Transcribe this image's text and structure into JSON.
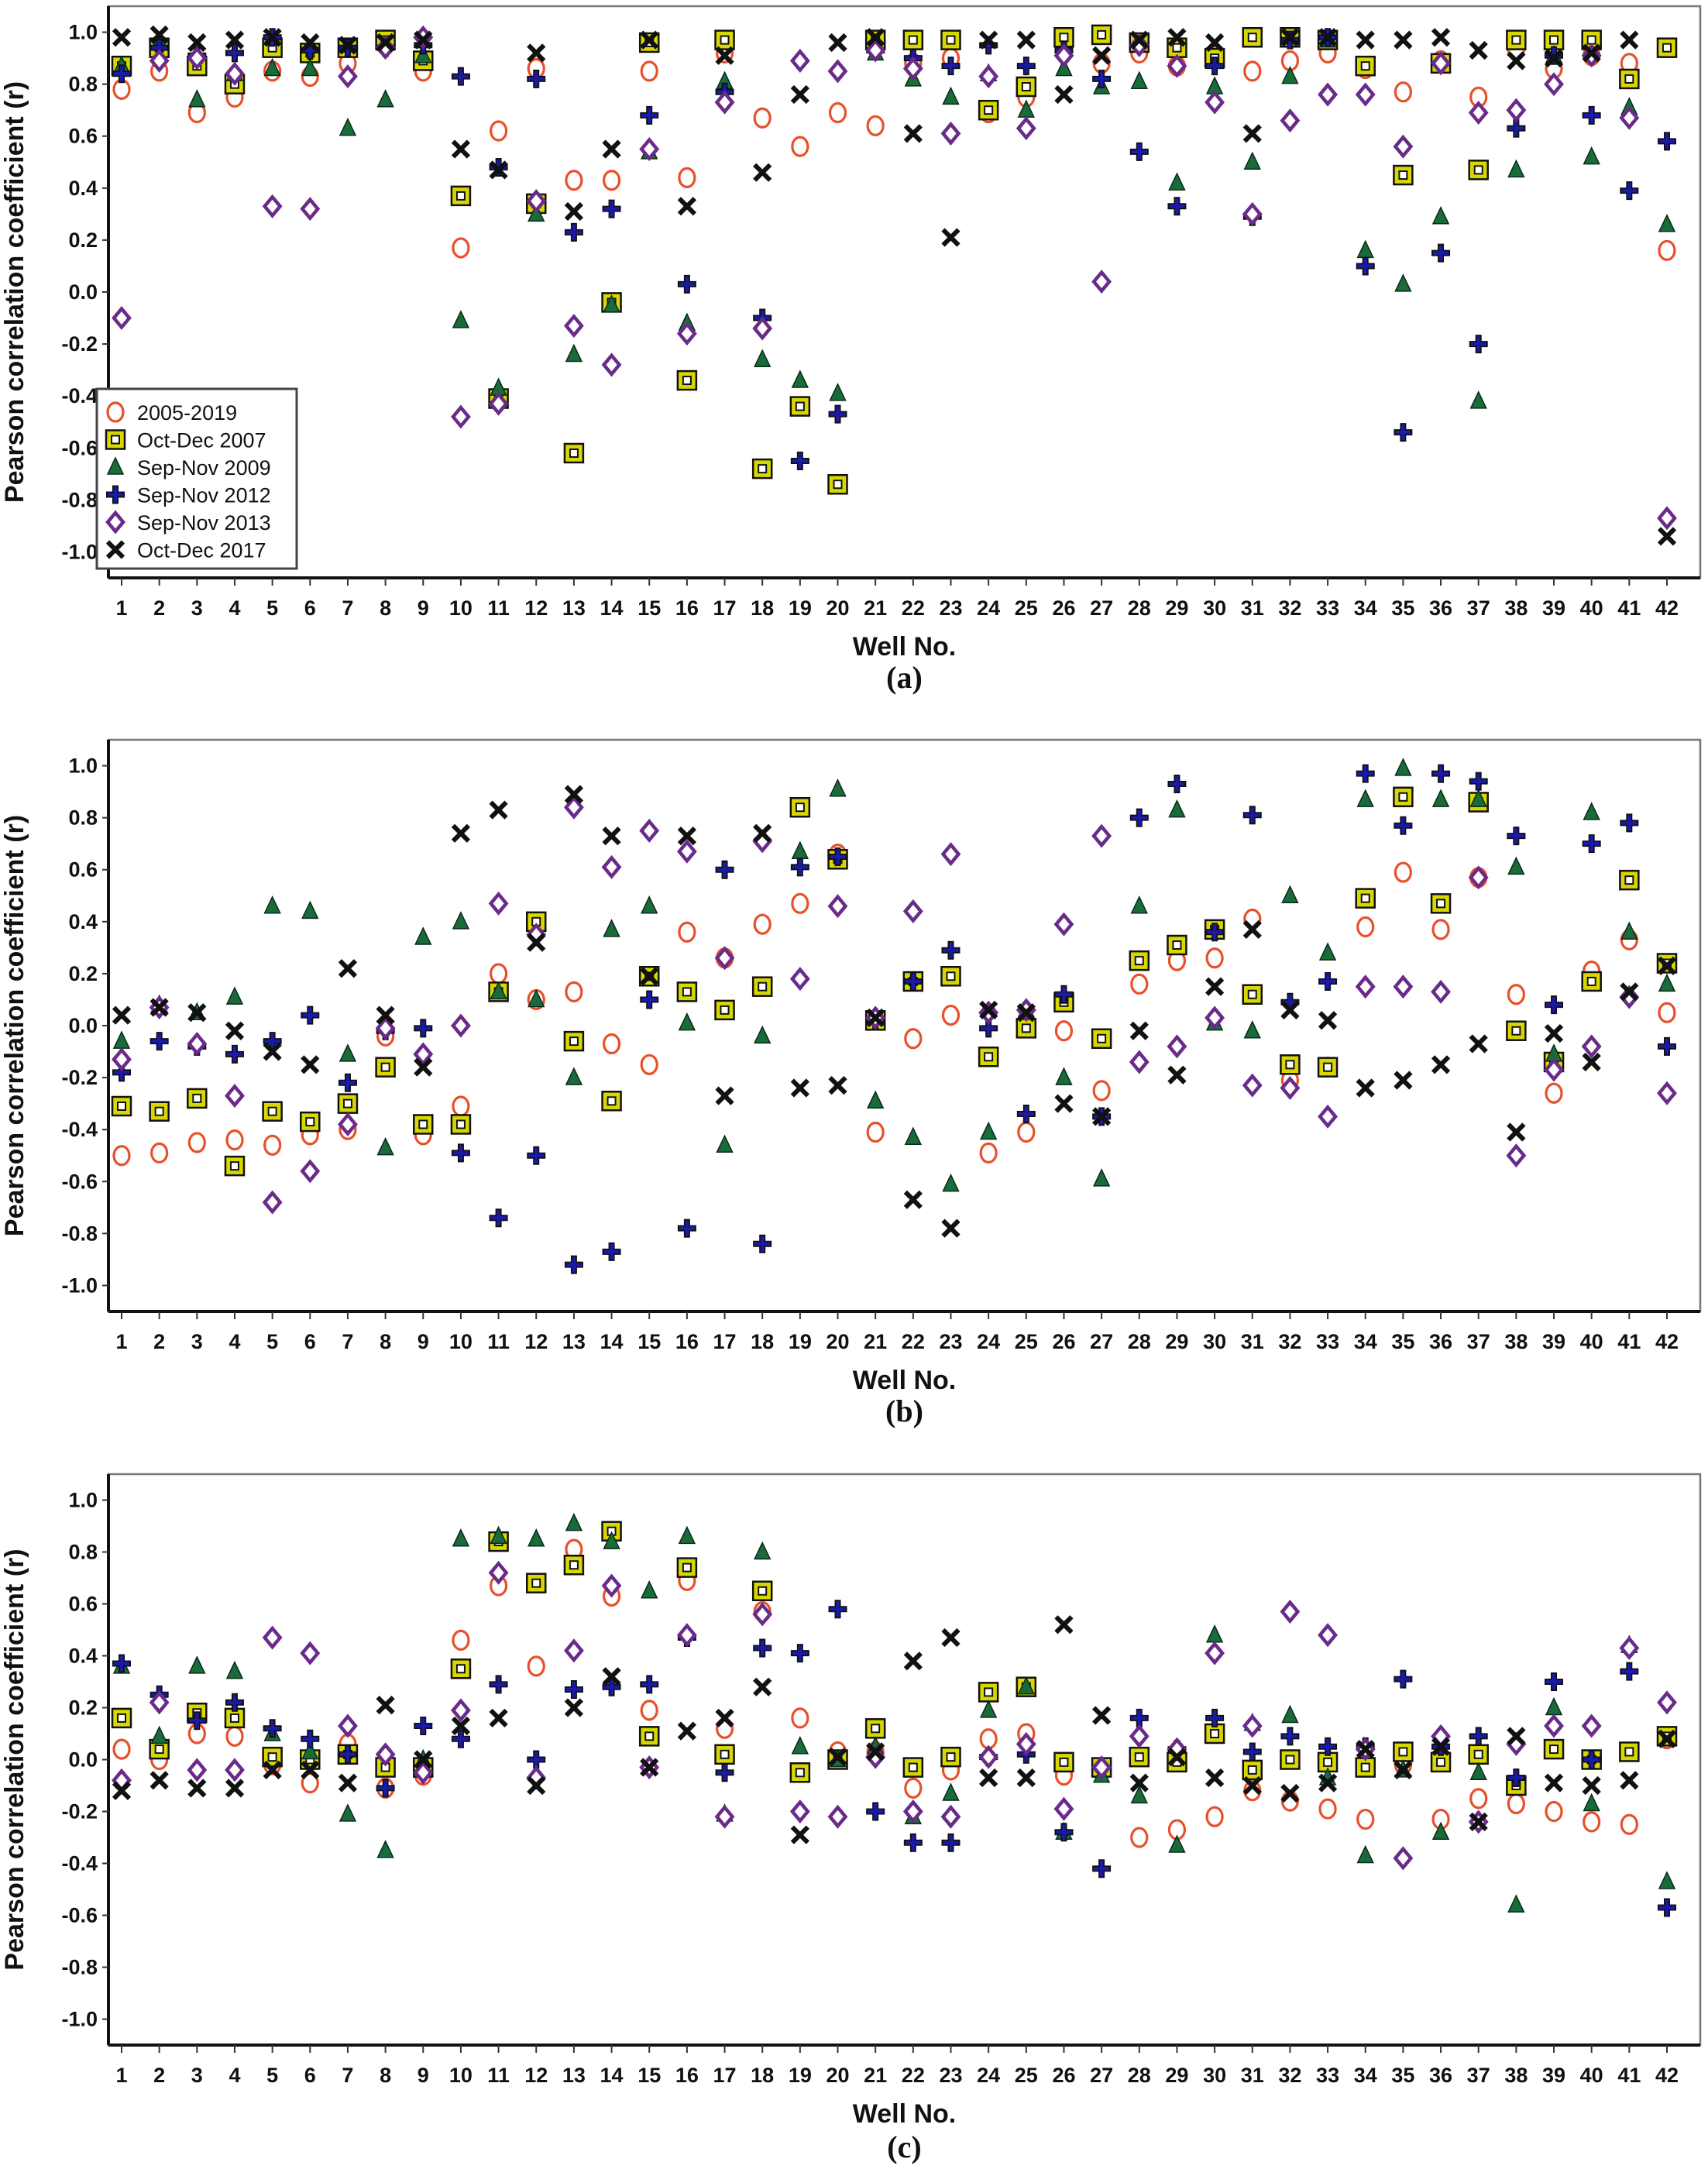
{
  "figure": {
    "xlabel": "Well No.",
    "ylabel": "Pearson correlation coefficient (r)"
  },
  "legend": [
    {
      "key": "s2005_2019",
      "label": "2005-2019",
      "marker": "circle",
      "color": "#e8502a"
    },
    {
      "key": "od2007",
      "label": "Oct-Dec 2007",
      "marker": "square",
      "color": "#d8d800"
    },
    {
      "key": "sn2009",
      "label": "Sep-Nov 2009",
      "marker": "triangle",
      "color": "#1a6b3a"
    },
    {
      "key": "sn2012",
      "label": "Sep-Nov 2012",
      "marker": "plus",
      "color": "#1a1aa8"
    },
    {
      "key": "sn2013",
      "label": "Sep-Nov 2013",
      "marker": "diamond",
      "color": "#6a2a8a"
    },
    {
      "key": "od2017",
      "label": "Oct-Dec 2017",
      "marker": "x",
      "color": "#111111"
    }
  ],
  "chart_data": [
    {
      "type": "scatter",
      "panel_label": "(a)",
      "xlabel": "Well No.",
      "ylabel": "Pearson correlation coefficient (r)",
      "ylim": [
        -1.1,
        1.1
      ],
      "yticks": [
        "1.0",
        "0.8",
        "0.6",
        "0.4",
        "0.2",
        "0.0",
        "-0.2",
        "-0.4",
        "-0.6",
        "-0.8",
        "-1.0"
      ],
      "x": [
        1,
        2,
        3,
        4,
        5,
        6,
        7,
        8,
        9,
        10,
        11,
        12,
        13,
        14,
        15,
        16,
        17,
        18,
        19,
        20,
        21,
        22,
        23,
        24,
        25,
        26,
        27,
        28,
        29,
        30,
        31,
        32,
        33,
        34,
        35,
        36,
        37,
        38,
        39,
        40,
        41,
        42
      ],
      "legend_position": "bottom-left",
      "grid": false,
      "series": [
        {
          "name": "2005-2019",
          "values": [
            0.78,
            0.85,
            0.69,
            0.75,
            0.85,
            0.83,
            0.88,
            0.95,
            0.85,
            0.17,
            0.62,
            0.86,
            0.43,
            0.43,
            0.85,
            0.44,
            0.92,
            0.67,
            0.56,
            0.69,
            0.64,
            0.88,
            0.9,
            0.69,
            0.75,
            0.96,
            0.88,
            0.92,
            0.87,
            0.91,
            0.85,
            0.89,
            0.92,
            0.86,
            0.77,
            0.89,
            0.75,
            0.93,
            0.86,
            0.91,
            0.88,
            0.16
          ]
        },
        {
          "name": "Oct-Dec 2007",
          "values": [
            0.87,
            0.94,
            0.87,
            0.8,
            0.94,
            0.92,
            0.94,
            0.97,
            0.89,
            0.37,
            -0.41,
            0.34,
            -0.62,
            -0.04,
            0.96,
            -0.34,
            0.97,
            -0.68,
            -0.44,
            -0.74,
            0.97,
            0.97,
            0.97,
            0.7,
            0.79,
            0.98,
            0.99,
            0.96,
            0.94,
            0.9,
            0.98,
            0.98,
            0.97,
            0.87,
            0.45,
            0.88,
            0.47,
            0.97,
            0.97,
            0.97,
            0.82,
            0.94
          ]
        },
        {
          "name": "Sep-Nov 2009",
          "values": [
            0.87,
            0.96,
            0.74,
            0.84,
            0.86,
            0.86,
            0.63,
            0.74,
            0.91,
            -0.11,
            -0.37,
            0.3,
            -0.24,
            -0.05,
            0.54,
            -0.12,
            0.81,
            -0.26,
            -0.34,
            -0.39,
            0.92,
            0.82,
            0.75,
            0.84,
            0.7,
            0.86,
            0.79,
            0.81,
            0.42,
            0.79,
            0.5,
            0.83,
            0.97,
            0.16,
            0.03,
            0.29,
            -0.42,
            0.47,
            0.91,
            0.52,
            0.71,
            0.26
          ]
        },
        {
          "name": "Sep-Nov 2012",
          "values": [
            0.84,
            0.94,
            0.91,
            0.92,
            0.98,
            0.93,
            0.94,
            0.94,
            0.95,
            0.83,
            0.48,
            0.82,
            0.23,
            0.32,
            0.68,
            0.03,
            0.77,
            -0.1,
            -0.65,
            -0.47,
            0.93,
            0.9,
            0.87,
            0.95,
            0.87,
            0.93,
            0.82,
            0.54,
            0.33,
            0.87,
            0.29,
            0.97,
            0.98,
            0.1,
            -0.54,
            0.15,
            -0.2,
            0.63,
            0.91,
            0.68,
            0.39,
            0.58
          ]
        },
        {
          "name": "Sep-Nov 2013",
          "values": [
            -0.1,
            0.89,
            0.9,
            0.84,
            0.33,
            0.32,
            0.83,
            0.94,
            0.98,
            -0.48,
            -0.43,
            0.35,
            -0.13,
            -0.28,
            0.55,
            -0.16,
            0.73,
            -0.14,
            0.89,
            0.85,
            0.93,
            0.86,
            0.61,
            0.83,
            0.63,
            0.91,
            0.04,
            0.95,
            0.87,
            0.73,
            0.3,
            0.66,
            0.76,
            0.76,
            0.56,
            0.88,
            0.69,
            0.7,
            0.8,
            0.91,
            0.67,
            -0.87
          ]
        },
        {
          "name": "Oct-Dec 2017",
          "values": [
            0.98,
            0.99,
            0.96,
            0.97,
            0.98,
            0.96,
            0.95,
            0.96,
            0.97,
            0.55,
            0.47,
            0.92,
            0.31,
            0.55,
            0.97,
            0.33,
            0.91,
            0.46,
            0.76,
            0.96,
            0.98,
            0.61,
            0.21,
            0.97,
            0.97,
            0.76,
            0.91,
            0.97,
            0.98,
            0.96,
            0.61,
            0.98,
            0.98,
            0.97,
            0.97,
            0.98,
            0.93,
            0.89,
            0.9,
            0.92,
            0.97,
            -0.94
          ]
        }
      ]
    },
    {
      "type": "scatter",
      "panel_label": "(b)",
      "xlabel": "Well No.",
      "ylabel": "Pearson correlation coefficient (r)",
      "ylim": [
        -1.1,
        1.1
      ],
      "yticks": [
        "1.0",
        "0.8",
        "0.6",
        "0.4",
        "0.2",
        "0.0",
        "-0.2",
        "-0.4",
        "-0.6",
        "-0.8",
        "-1.0"
      ],
      "x": [
        1,
        2,
        3,
        4,
        5,
        6,
        7,
        8,
        9,
        10,
        11,
        12,
        13,
        14,
        15,
        16,
        17,
        18,
        19,
        20,
        21,
        22,
        23,
        24,
        25,
        26,
        27,
        28,
        29,
        30,
        31,
        32,
        33,
        34,
        35,
        36,
        37,
        38,
        39,
        40,
        41,
        42
      ],
      "grid": false,
      "series": [
        {
          "name": "2005-2019",
          "values": [
            -0.5,
            -0.49,
            -0.45,
            -0.44,
            -0.46,
            -0.42,
            -0.4,
            -0.04,
            -0.42,
            -0.31,
            0.2,
            0.1,
            0.13,
            -0.07,
            -0.15,
            0.36,
            0.26,
            0.39,
            0.47,
            0.66,
            -0.41,
            -0.05,
            0.04,
            -0.49,
            -0.41,
            -0.02,
            -0.25,
            0.16,
            0.25,
            0.26,
            0.41,
            -0.21,
            -0.16,
            0.38,
            0.59,
            0.37,
            0.57,
            0.12,
            -0.26,
            0.21,
            0.33,
            0.05
          ]
        },
        {
          "name": "Oct-Dec 2007",
          "values": [
            -0.31,
            -0.33,
            -0.28,
            -0.54,
            -0.33,
            -0.37,
            -0.3,
            -0.16,
            -0.38,
            -0.38,
            0.13,
            0.4,
            -0.06,
            -0.29,
            0.19,
            0.13,
            0.06,
            0.15,
            0.84,
            0.64,
            0.02,
            0.17,
            0.19,
            -0.12,
            -0.01,
            0.09,
            -0.05,
            0.25,
            0.31,
            0.37,
            0.12,
            -0.15,
            -0.16,
            0.49,
            0.88,
            0.47,
            0.86,
            -0.02,
            -0.14,
            0.17,
            0.56,
            0.24
          ]
        },
        {
          "name": "Sep-Nov 2009",
          "values": [
            -0.06,
            0.08,
            0.05,
            0.11,
            0.46,
            0.44,
            -0.11,
            -0.47,
            0.34,
            0.4,
            0.13,
            0.1,
            -0.2,
            0.37,
            0.46,
            0.01,
            -0.46,
            -0.04,
            0.67,
            0.91,
            -0.29,
            -0.43,
            -0.61,
            -0.41,
            0.06,
            -0.2,
            -0.59,
            0.46,
            0.83,
            0.01,
            -0.02,
            0.5,
            0.28,
            0.87,
            0.99,
            0.87,
            0.87,
            0.61,
            -0.11,
            0.82,
            0.36,
            0.16
          ]
        },
        {
          "name": "Sep-Nov 2012",
          "values": [
            -0.18,
            -0.06,
            -0.08,
            -0.11,
            -0.06,
            0.04,
            -0.22,
            -0.02,
            -0.01,
            -0.49,
            -0.74,
            -0.5,
            -0.92,
            -0.87,
            0.1,
            -0.78,
            0.6,
            -0.84,
            0.61,
            0.65,
            0.02,
            0.17,
            0.29,
            -0.01,
            -0.34,
            0.12,
            -0.35,
            0.8,
            0.93,
            0.36,
            0.81,
            0.09,
            0.17,
            0.97,
            0.77,
            0.97,
            0.94,
            0.73,
            0.08,
            0.7,
            0.78,
            -0.08
          ]
        },
        {
          "name": "Sep-Nov 2013",
          "values": [
            -0.13,
            0.07,
            -0.07,
            -0.27,
            -0.68,
            -0.56,
            -0.38,
            -0.01,
            -0.11,
            0.0,
            0.47,
            0.35,
            0.84,
            0.61,
            0.75,
            0.67,
            0.26,
            0.71,
            0.18,
            0.46,
            0.03,
            0.44,
            0.66,
            0.05,
            0.06,
            0.39,
            0.73,
            -0.14,
            -0.08,
            0.03,
            -0.23,
            -0.24,
            -0.35,
            0.15,
            0.15,
            0.13,
            0.57,
            -0.5,
            -0.17,
            -0.08,
            0.11,
            -0.26
          ]
        },
        {
          "name": "Oct-Dec 2017",
          "values": [
            0.04,
            0.07,
            0.05,
            -0.02,
            -0.1,
            -0.15,
            0.22,
            0.04,
            -0.16,
            0.74,
            0.83,
            0.32,
            0.89,
            0.73,
            0.19,
            0.73,
            -0.27,
            0.74,
            -0.24,
            -0.23,
            0.03,
            -0.67,
            -0.78,
            0.06,
            0.05,
            -0.3,
            -0.35,
            -0.02,
            -0.19,
            0.15,
            0.37,
            0.06,
            0.02,
            -0.24,
            -0.21,
            -0.15,
            -0.07,
            -0.41,
            -0.03,
            -0.14,
            0.13,
            0.23
          ]
        }
      ]
    },
    {
      "type": "scatter",
      "panel_label": "(c)",
      "xlabel": "Well No.",
      "ylabel": "Pearson correlation coefficient (r)",
      "ylim": [
        -1.1,
        1.1
      ],
      "yticks": [
        "1.0",
        "0.8",
        "0.6",
        "0.4",
        "0.2",
        "0.0",
        "-0.2",
        "-0.4",
        "-0.6",
        "-0.8",
        "-1.0"
      ],
      "x": [
        1,
        2,
        3,
        4,
        5,
        6,
        7,
        8,
        9,
        10,
        11,
        12,
        13,
        14,
        15,
        16,
        17,
        18,
        19,
        20,
        21,
        22,
        23,
        24,
        25,
        26,
        27,
        28,
        29,
        30,
        31,
        32,
        33,
        34,
        35,
        36,
        37,
        38,
        39,
        40,
        41,
        42
      ],
      "grid": false,
      "series": [
        {
          "name": "2005-2019",
          "values": [
            0.04,
            0.0,
            0.1,
            0.09,
            -0.02,
            -0.09,
            0.06,
            -0.11,
            -0.06,
            0.46,
            0.67,
            0.36,
            0.81,
            0.63,
            0.19,
            0.69,
            0.12,
            0.57,
            0.16,
            0.03,
            0.03,
            -0.11,
            -0.04,
            0.08,
            0.1,
            -0.06,
            -0.03,
            -0.3,
            -0.27,
            -0.22,
            -0.12,
            -0.16,
            -0.19,
            -0.23,
            -0.02,
            -0.23,
            -0.15,
            -0.17,
            -0.2,
            -0.24,
            -0.25,
            0.08
          ]
        },
        {
          "name": "Oct-Dec 2007",
          "values": [
            0.16,
            0.04,
            0.18,
            0.16,
            0.01,
            0.0,
            0.02,
            -0.03,
            -0.03,
            0.35,
            0.84,
            0.68,
            0.75,
            0.88,
            0.09,
            0.74,
            0.02,
            0.65,
            -0.05,
            0.0,
            0.12,
            -0.03,
            0.01,
            0.26,
            0.28,
            -0.01,
            -0.03,
            0.01,
            -0.01,
            0.1,
            -0.04,
            0.0,
            -0.01,
            -0.03,
            0.03,
            -0.01,
            0.02,
            -0.1,
            0.04,
            0.0,
            0.03,
            0.09
          ]
        },
        {
          "name": "Sep-Nov 2009",
          "values": [
            0.36,
            0.09,
            0.36,
            0.34,
            0.1,
            0.03,
            -0.21,
            -0.35,
            0.0,
            0.85,
            0.86,
            0.85,
            0.91,
            0.84,
            0.65,
            0.86,
            -0.21,
            0.8,
            0.05,
            0.0,
            0.05,
            -0.22,
            -0.13,
            0.19,
            0.28,
            -0.28,
            -0.06,
            -0.14,
            -0.33,
            0.48,
            0.14,
            0.17,
            -0.07,
            -0.37,
            -0.04,
            -0.28,
            -0.05,
            -0.56,
            0.2,
            -0.17,
            0.44,
            -0.47
          ]
        },
        {
          "name": "Sep-Nov 2012",
          "values": [
            0.37,
            0.25,
            0.15,
            0.22,
            0.12,
            0.08,
            0.02,
            -0.11,
            0.13,
            0.08,
            0.29,
            0.0,
            0.27,
            0.28,
            0.29,
            0.47,
            -0.05,
            0.43,
            0.41,
            0.58,
            -0.2,
            -0.32,
            -0.32,
            0.01,
            0.02,
            -0.28,
            -0.42,
            0.16,
            0.04,
            0.16,
            0.03,
            0.09,
            0.05,
            0.05,
            0.31,
            0.05,
            0.09,
            -0.07,
            0.3,
            0.0,
            0.34,
            -0.57
          ]
        },
        {
          "name": "Sep-Nov 2013",
          "values": [
            -0.08,
            0.22,
            -0.04,
            -0.04,
            0.47,
            0.41,
            0.13,
            0.02,
            -0.05,
            0.19,
            0.72,
            -0.07,
            0.42,
            0.67,
            -0.03,
            0.48,
            -0.22,
            0.56,
            -0.2,
            -0.22,
            0.01,
            -0.2,
            -0.22,
            0.01,
            0.06,
            -0.19,
            -0.03,
            0.09,
            0.04,
            0.41,
            0.13,
            0.57,
            0.48,
            0.04,
            -0.38,
            0.09,
            -0.24,
            0.06,
            0.13,
            0.13,
            0.43,
            0.22
          ]
        },
        {
          "name": "Oct-Dec 2017",
          "values": [
            -0.12,
            -0.08,
            -0.11,
            -0.11,
            -0.04,
            -0.04,
            -0.09,
            0.21,
            0.0,
            0.13,
            0.16,
            -0.1,
            0.2,
            0.32,
            -0.03,
            0.11,
            0.16,
            0.28,
            -0.29,
            0.01,
            0.03,
            0.38,
            0.47,
            -0.07,
            -0.07,
            0.52,
            0.17,
            -0.09,
            0.01,
            -0.07,
            -0.1,
            -0.13,
            -0.09,
            0.04,
            -0.04,
            0.05,
            -0.24,
            0.09,
            -0.09,
            -0.1,
            -0.08,
            0.08
          ]
        }
      ]
    }
  ]
}
